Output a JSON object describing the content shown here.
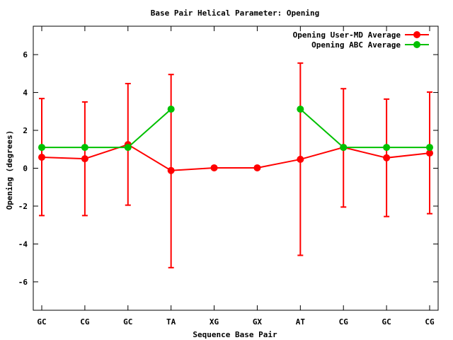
{
  "chart_data": {
    "type": "line",
    "title": "Base Pair Helical Parameter: Opening",
    "xlabel": "Sequence Base Pair",
    "ylabel": "Opening (degrees)",
    "categories": [
      "GC",
      "CG",
      "GC",
      "TA",
      "XG",
      "GX",
      "AT",
      "CG",
      "GC",
      "CG"
    ],
    "ylim": [
      -7.5,
      7.5
    ],
    "yticks": [
      -6,
      -4,
      -2,
      0,
      2,
      4,
      6
    ],
    "grid": false,
    "legend_position": "top-right",
    "series": [
      {
        "name": "Opening User-MD Average",
        "color": "#ff0000",
        "values": [
          0.58,
          0.5,
          1.25,
          -0.12,
          0.02,
          0.02,
          0.47,
          1.1,
          0.55,
          0.8
        ],
        "error_low": [
          -2.5,
          -2.5,
          -1.95,
          -5.25,
          null,
          null,
          -4.6,
          -2.05,
          -2.55,
          -2.4
        ],
        "error_high": [
          3.68,
          3.5,
          4.47,
          4.95,
          null,
          null,
          5.55,
          4.2,
          3.65,
          4.02
        ]
      },
      {
        "name": "Opening ABC Average",
        "color": "#00c000",
        "values": [
          1.1,
          1.1,
          1.1,
          3.12,
          null,
          null,
          3.12,
          1.1,
          1.1,
          1.1
        ]
      }
    ]
  }
}
